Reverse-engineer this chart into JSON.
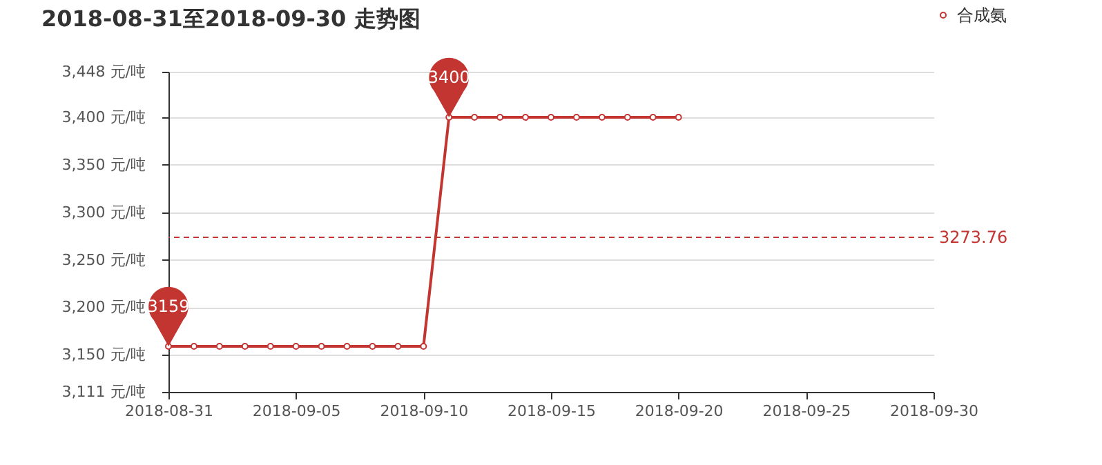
{
  "chart_data": {
    "type": "line",
    "title": "2018-08-31至2018-09-30 走势图",
    "x": [
      "2018-08-31",
      "2018-09-01",
      "2018-09-02",
      "2018-09-03",
      "2018-09-04",
      "2018-09-05",
      "2018-09-06",
      "2018-09-07",
      "2018-09-08",
      "2018-09-09",
      "2018-09-10",
      "2018-09-11",
      "2018-09-12",
      "2018-09-13",
      "2018-09-14",
      "2018-09-15",
      "2018-09-16",
      "2018-09-17",
      "2018-09-18",
      "2018-09-19",
      "2018-09-20"
    ],
    "series": [
      {
        "name": "合成氨",
        "color": "#c23531",
        "values": [
          3159,
          3159,
          3159,
          3159,
          3159,
          3159,
          3159,
          3159,
          3159,
          3159,
          3159,
          3400,
          3400,
          3400,
          3400,
          3400,
          3400,
          3400,
          3400,
          3400,
          3400
        ]
      }
    ],
    "xlim": [
      "2018-08-31",
      "2018-09-30"
    ],
    "xticks": [
      "2018-08-31",
      "2018-09-05",
      "2018-09-10",
      "2018-09-15",
      "2018-09-20",
      "2018-09-25",
      "2018-09-30"
    ],
    "ylim": [
      3111,
      3448
    ],
    "yticks": [
      {
        "value": 3111,
        "label": "3,111 元/吨"
      },
      {
        "value": 3150,
        "label": "3,150 元/吨"
      },
      {
        "value": 3200,
        "label": "3,200 元/吨"
      },
      {
        "value": 3250,
        "label": "3,250 元/吨"
      },
      {
        "value": 3300,
        "label": "3,300 元/吨"
      },
      {
        "value": 3350,
        "label": "3,350 元/吨"
      },
      {
        "value": 3400,
        "label": "3,400 元/吨"
      },
      {
        "value": 3448,
        "label": "3,448 元/吨"
      }
    ],
    "ref_lines": [
      {
        "axis": "y",
        "value": 3273.76,
        "label": "3273.76",
        "color": "#c23531",
        "line_style": "dashed"
      }
    ],
    "annotations": [
      {
        "text": "3159",
        "x": "2018-08-31",
        "y": 3159
      },
      {
        "text": "3400",
        "x": "2018-09-11",
        "y": 3400
      }
    ],
    "grid": "y",
    "legend": "top right",
    "marker": "circle",
    "line_style": "solid"
  }
}
